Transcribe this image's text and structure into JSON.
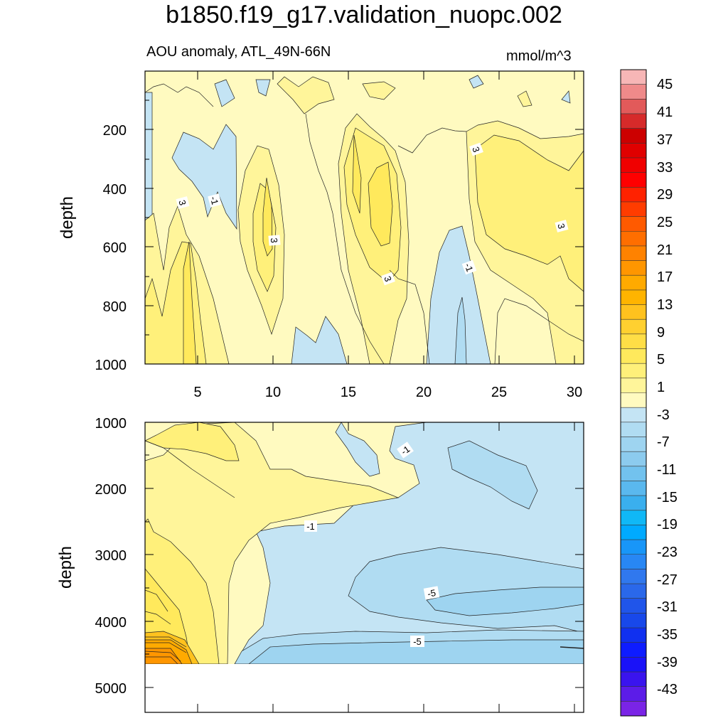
{
  "title": "b1850.f19_g17.validation_nuopc.002",
  "subtitle_left": "AOU anomaly, ATL_49N-66N",
  "subtitle_right": "mmol/m^3",
  "chart_data": [
    {
      "type": "contour",
      "panel": "top",
      "ylabel": "depth",
      "xlim": [
        1.5,
        30.8
      ],
      "ylim": [
        1000,
        20
      ],
      "x_ticks": [
        "5",
        "10",
        "15",
        "20",
        "25",
        "30"
      ],
      "y_ticks": [
        "200",
        "400",
        "600",
        "800",
        "1000"
      ],
      "contour_labels": [
        "3",
        "-1",
        "3",
        "3",
        "-1",
        "3",
        "3"
      ]
    },
    {
      "type": "contour",
      "panel": "bottom",
      "ylabel": "depth",
      "xlim": [
        1.5,
        30.8
      ],
      "ylim": [
        5400,
        1000
      ],
      "y_ticks": [
        "1000",
        "2000",
        "3000",
        "4000",
        "5000"
      ],
      "contour_labels": [
        "-1",
        "-1",
        "-5",
        "-5"
      ],
      "bottom_data_limit": 4650
    }
  ],
  "colorbar": {
    "labels": [
      "45",
      "41",
      "37",
      "33",
      "29",
      "25",
      "21",
      "17",
      "13",
      "9",
      "5",
      "1",
      "-3",
      "-7",
      "-11",
      "-15",
      "-19",
      "-23",
      "-27",
      "-31",
      "-35",
      "-39",
      "-43"
    ],
    "colors": [
      "#f7b6b6",
      "#ef8a8a",
      "#e25a5a",
      "#d62a2a",
      "#cc0000",
      "#e00000",
      "#f00000",
      "#ff0000",
      "#ff2200",
      "#ff3c00",
      "#ff5a00",
      "#ff6e00",
      "#ff8200",
      "#ff9600",
      "#ffaa00",
      "#ffb400",
      "#ffc21e",
      "#ffd030",
      "#ffde46",
      "#ffe95c",
      "#fff07a",
      "#fff59a",
      "#fffac0",
      "#c4e4f4",
      "#b0dcf2",
      "#9ed4f0",
      "#8ccbee",
      "#72c2ee",
      "#5ab8ee",
      "#3aafee",
      "#10b8f6",
      "#00aaff",
      "#1896f8",
      "#2887f4",
      "#3078ee",
      "#2a68ea",
      "#2055ea",
      "#1848ea",
      "#1030f0",
      "#0e1cff",
      "#1a12f8",
      "#3a14ee",
      "#5c1ce8",
      "#7a24e6"
    ]
  }
}
